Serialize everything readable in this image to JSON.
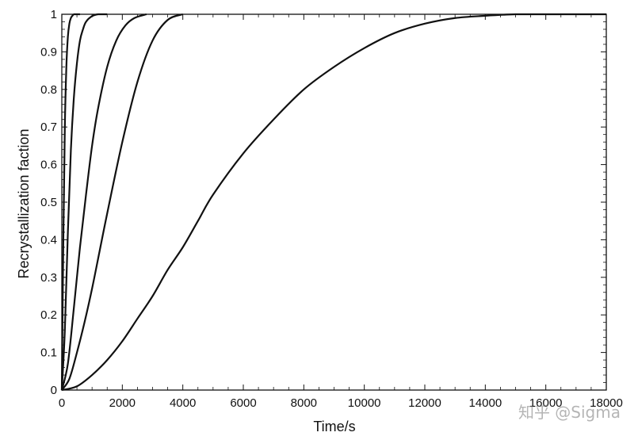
{
  "watermark": "知乎 @Sigma",
  "chart_data": {
    "type": "line",
    "xlabel": "Time/s",
    "ylabel": "Recrystallization faction",
    "xlim": [
      0,
      18000
    ],
    "ylim": [
      0,
      1
    ],
    "xticks": [
      0,
      2000,
      4000,
      6000,
      8000,
      10000,
      12000,
      14000,
      16000,
      18000
    ],
    "yticks": [
      0,
      0.1,
      0.2,
      0.3,
      0.4,
      0.5,
      0.6,
      0.7,
      0.8,
      0.9,
      1
    ],
    "grid": false,
    "line_color": "#111111",
    "series": [
      {
        "x": [
          0,
          50,
          100,
          150,
          200,
          250,
          300,
          350,
          400,
          500,
          600
        ],
        "y": [
          0,
          0.4,
          0.7,
          0.86,
          0.94,
          0.975,
          0.99,
          0.996,
          1.0,
          1.0,
          1.0
        ]
      },
      {
        "x": [
          0,
          100,
          200,
          300,
          400,
          500,
          600,
          700,
          800,
          1000,
          1200,
          1500
        ],
        "y": [
          0,
          0.16,
          0.42,
          0.64,
          0.78,
          0.87,
          0.93,
          0.96,
          0.98,
          0.995,
          1.0,
          1.0
        ]
      },
      {
        "x": [
          0,
          200,
          400,
          600,
          800,
          1000,
          1200,
          1500,
          1800,
          2100,
          2400,
          2800
        ],
        "y": [
          0,
          0.07,
          0.22,
          0.38,
          0.52,
          0.65,
          0.75,
          0.86,
          0.93,
          0.97,
          0.99,
          1.0
        ]
      },
      {
        "x": [
          0,
          250,
          500,
          750,
          1000,
          1250,
          1500,
          2000,
          2500,
          3000,
          3500,
          4000
        ],
        "y": [
          0,
          0.03,
          0.1,
          0.18,
          0.27,
          0.37,
          0.47,
          0.66,
          0.82,
          0.93,
          0.985,
          1.0
        ]
      },
      {
        "x": [
          0,
          500,
          1000,
          1500,
          2000,
          2500,
          3000,
          3500,
          4000,
          4500,
          5000,
          6000,
          7000,
          8000,
          9000,
          10000,
          11000,
          12000,
          13000,
          14000,
          15000,
          16000,
          17000,
          18000
        ],
        "y": [
          0,
          0.01,
          0.04,
          0.08,
          0.13,
          0.19,
          0.25,
          0.32,
          0.38,
          0.45,
          0.52,
          0.63,
          0.72,
          0.8,
          0.86,
          0.91,
          0.95,
          0.975,
          0.99,
          0.996,
          1.0,
          1.0,
          1.0,
          1.0
        ]
      }
    ]
  }
}
